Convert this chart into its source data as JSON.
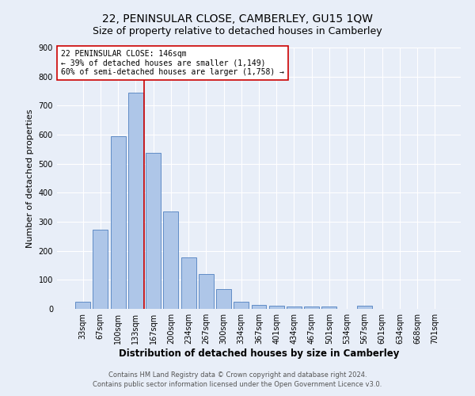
{
  "title": "22, PENINSULAR CLOSE, CAMBERLEY, GU15 1QW",
  "subtitle": "Size of property relative to detached houses in Camberley",
  "xlabel": "Distribution of detached houses by size in Camberley",
  "ylabel": "Number of detached properties",
  "bar_labels": [
    "33sqm",
    "67sqm",
    "100sqm",
    "133sqm",
    "167sqm",
    "200sqm",
    "234sqm",
    "267sqm",
    "300sqm",
    "334sqm",
    "367sqm",
    "401sqm",
    "434sqm",
    "467sqm",
    "501sqm",
    "534sqm",
    "567sqm",
    "601sqm",
    "634sqm",
    "668sqm",
    "701sqm"
  ],
  "bar_values": [
    25,
    272,
    595,
    745,
    538,
    335,
    178,
    120,
    67,
    25,
    15,
    12,
    8,
    8,
    8,
    0,
    10,
    0,
    0,
    0,
    0
  ],
  "bar_color": "#aec6e8",
  "bar_edge_color": "#5080c0",
  "vline_x": 3.5,
  "vline_color": "#cc0000",
  "annotation_text_line1": "22 PENINSULAR CLOSE: 146sqm",
  "annotation_text_line2": "← 39% of detached houses are smaller (1,149)",
  "annotation_text_line3": "60% of semi-detached houses are larger (1,758) →",
  "footnote1": "Contains HM Land Registry data © Crown copyright and database right 2024.",
  "footnote2": "Contains public sector information licensed under the Open Government Licence v3.0.",
  "ylim": [
    0,
    900
  ],
  "yticks": [
    0,
    100,
    200,
    300,
    400,
    500,
    600,
    700,
    800,
    900
  ],
  "background_color": "#e8eef8",
  "plot_background_color": "#e8eef8",
  "grid_color": "#ffffff",
  "title_fontsize": 10,
  "subtitle_fontsize": 9,
  "xlabel_fontsize": 8.5,
  "ylabel_fontsize": 8,
  "tick_fontsize": 7,
  "annotation_fontsize": 7,
  "footnote_fontsize": 6
}
